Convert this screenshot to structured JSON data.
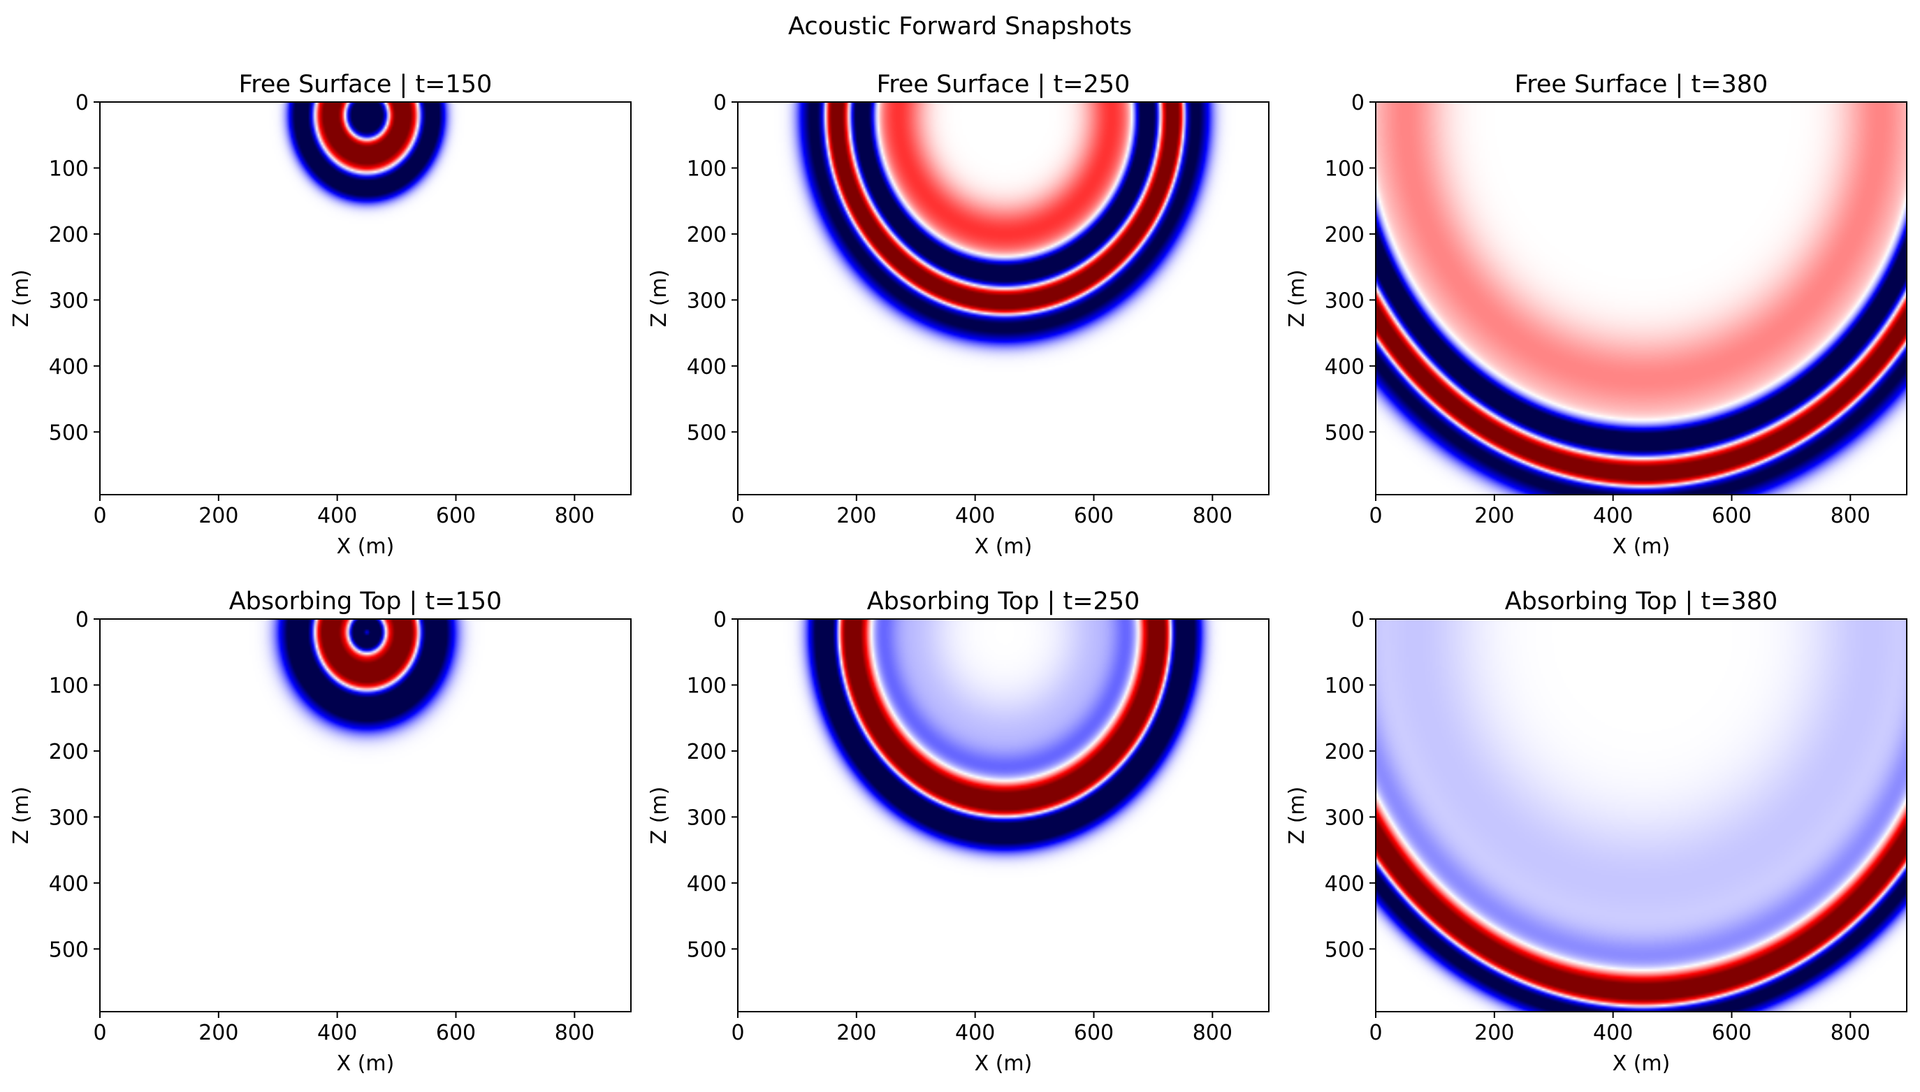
{
  "figure": {
    "suptitle": "Acoustic Forward Snapshots"
  },
  "style": {
    "colormap": "seismic",
    "negative_color": "#00004d",
    "positive_color": "#800000",
    "axes_frame_color": "#000000",
    "background": "#ffffff"
  },
  "chart_data": [
    {
      "type": "heatmap",
      "title": "Free Surface | t=150",
      "boundary": "free-surface",
      "time_step": 150,
      "xlabel": "X (m)",
      "ylabel": "Z (m)",
      "xlim": [
        0,
        895
      ],
      "ylim": [
        595,
        0
      ],
      "xticks": [
        0,
        200,
        400,
        600,
        800
      ],
      "yticks": [
        0,
        100,
        200,
        300,
        400,
        500
      ],
      "source": [
        450,
        20
      ],
      "wavefront_radius": 110,
      "rings": [
        {
          "offset": 0,
          "amplitude": -0.9,
          "width": 28
        },
        {
          "offset": -52,
          "amplitude": 1.0,
          "width": 34
        },
        {
          "offset": -98,
          "amplitude": -1.0,
          "width": 40
        }
      ]
    },
    {
      "type": "heatmap",
      "title": "Free Surface | t=250",
      "boundary": "free-surface",
      "time_step": 250,
      "xlabel": "X (m)",
      "ylabel": "Z (m)",
      "xlim": [
        0,
        895
      ],
      "ylim": [
        595,
        0
      ],
      "xticks": [
        0,
        200,
        400,
        600,
        800
      ],
      "yticks": [
        0,
        100,
        200,
        300,
        400,
        500
      ],
      "source": [
        450,
        20
      ],
      "wavefront_radius": 300,
      "rings": [
        {
          "offset": 20,
          "amplitude": -0.7,
          "width": 36
        },
        {
          "offset": -15,
          "amplitude": 1.0,
          "width": 26
        },
        {
          "offset": -60,
          "amplitude": -1.0,
          "width": 26
        },
        {
          "offset": -120,
          "amplitude": 0.25,
          "width": 60
        }
      ]
    },
    {
      "type": "heatmap",
      "title": "Free Surface | t=380",
      "boundary": "free-surface",
      "time_step": 380,
      "xlabel": "X (m)",
      "ylabel": "Z (m)",
      "xlim": [
        0,
        895
      ],
      "ylim": [
        595,
        0
      ],
      "xticks": [
        0,
        200,
        400,
        600,
        800
      ],
      "yticks": [
        0,
        100,
        200,
        300,
        400,
        500
      ],
      "source": [
        450,
        20
      ],
      "wavefront_radius": 560,
      "rings": [
        {
          "offset": 20,
          "amplitude": -0.7,
          "width": 38
        },
        {
          "offset": -15,
          "amplitude": 1.0,
          "width": 28
        },
        {
          "offset": -65,
          "amplitude": -1.0,
          "width": 28
        },
        {
          "offset": -160,
          "amplitude": 0.15,
          "width": 90
        }
      ]
    },
    {
      "type": "heatmap",
      "title": "Absorbing Top | t=150",
      "boundary": "absorbing",
      "time_step": 150,
      "xlabel": "X (m)",
      "ylabel": "Z (m)",
      "xlim": [
        0,
        895
      ],
      "ylim": [
        595,
        0
      ],
      "xticks": [
        0,
        200,
        400,
        600,
        800
      ],
      "yticks": [
        0,
        100,
        200,
        300,
        400,
        500
      ],
      "source": [
        450,
        20
      ],
      "wavefront_radius": 125,
      "rings": [
        {
          "offset": -12,
          "amplitude": -1.0,
          "width": 44
        },
        {
          "offset": -60,
          "amplitude": 1.0,
          "width": 38
        },
        {
          "offset": -110,
          "amplitude": -1.0,
          "width": 20
        }
      ]
    },
    {
      "type": "heatmap",
      "title": "Absorbing Top | t=250",
      "boundary": "absorbing",
      "time_step": 250,
      "xlabel": "X (m)",
      "ylabel": "Z (m)",
      "xlim": [
        0,
        895
      ],
      "ylim": [
        595,
        0
      ],
      "xticks": [
        0,
        200,
        400,
        600,
        800
      ],
      "yticks": [
        0,
        100,
        200,
        300,
        400,
        500
      ],
      "source": [
        450,
        20
      ],
      "wavefront_radius": 320,
      "rings": [
        {
          "offset": -18,
          "amplitude": -1.0,
          "width": 36
        },
        {
          "offset": -62,
          "amplitude": 1.0,
          "width": 34
        },
        {
          "offset": -110,
          "amplitude": -0.15,
          "width": 40
        },
        {
          "offset": -160,
          "amplitude": -0.08,
          "width": 90
        }
      ]
    },
    {
      "type": "heatmap",
      "title": "Absorbing Top | t=380",
      "boundary": "absorbing",
      "time_step": 380,
      "xlabel": "X (m)",
      "ylabel": "Z (m)",
      "xlim": [
        0,
        895
      ],
      "ylim": [
        595,
        0
      ],
      "xticks": [
        0,
        200,
        400,
        600,
        800
      ],
      "yticks": [
        0,
        100,
        200,
        300,
        400,
        500
      ],
      "source": [
        450,
        20
      ],
      "wavefront_radius": 565,
      "rings": [
        {
          "offset": 18,
          "amplitude": -0.8,
          "width": 32
        },
        {
          "offset": -18,
          "amplitude": 0.95,
          "width": 34
        },
        {
          "offset": -70,
          "amplitude": -0.12,
          "width": 50
        },
        {
          "offset": -180,
          "amplitude": -0.07,
          "width": 150
        }
      ]
    }
  ]
}
